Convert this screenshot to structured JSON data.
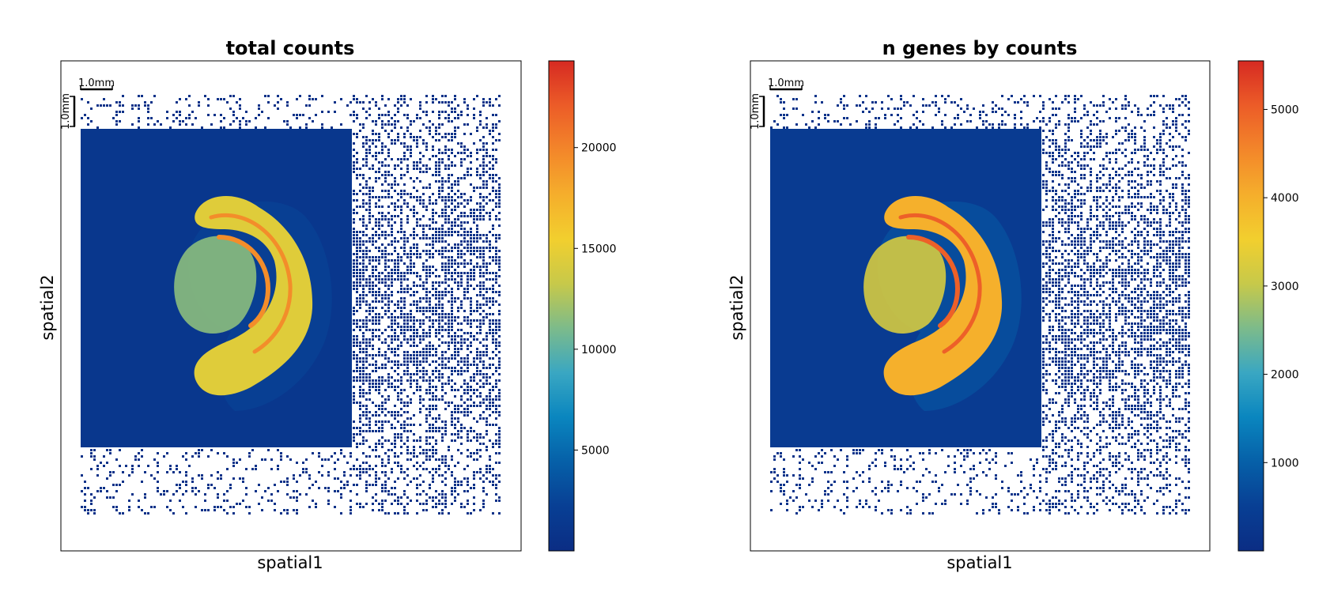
{
  "colormap": [
    "#0b2d84",
    "#083f94",
    "#0660a8",
    "#0a86bf",
    "#3aa7c2",
    "#7dbb8a",
    "#c7c94a",
    "#f2cf2e",
    "#f5ae2c",
    "#f3862a",
    "#ec5c28",
    "#d62a22"
  ],
  "background_color": "#ffffff",
  "chart_data": [
    {
      "type": "heatmap",
      "title": "total counts",
      "xlabel": "spatial1",
      "ylabel": "spatial2",
      "colorbar": {
        "min": 0,
        "max": 24300,
        "ticks": [
          5000,
          10000,
          15000,
          20000
        ]
      },
      "scalebar": {
        "horizontal_label": "1.0mm",
        "vertical_label": "1.0mm"
      },
      "tissue_level": {
        "hippocampus_band": 19500,
        "cortex": 14500,
        "thalamus": 11500,
        "background": 1200
      }
    },
    {
      "type": "heatmap",
      "title": "n genes by counts",
      "xlabel": "spatial1",
      "ylabel": "spatial2",
      "colorbar": {
        "min": 0,
        "max": 5550,
        "ticks": [
          1000,
          2000,
          3000,
          4000,
          5000
        ]
      },
      "scalebar": {
        "horizontal_label": "1.0mm",
        "vertical_label": "1.0mm"
      },
      "tissue_level": {
        "hippocampus_band": 5000,
        "cortex": 4000,
        "thalamus": 3200,
        "background": 400
      }
    }
  ]
}
